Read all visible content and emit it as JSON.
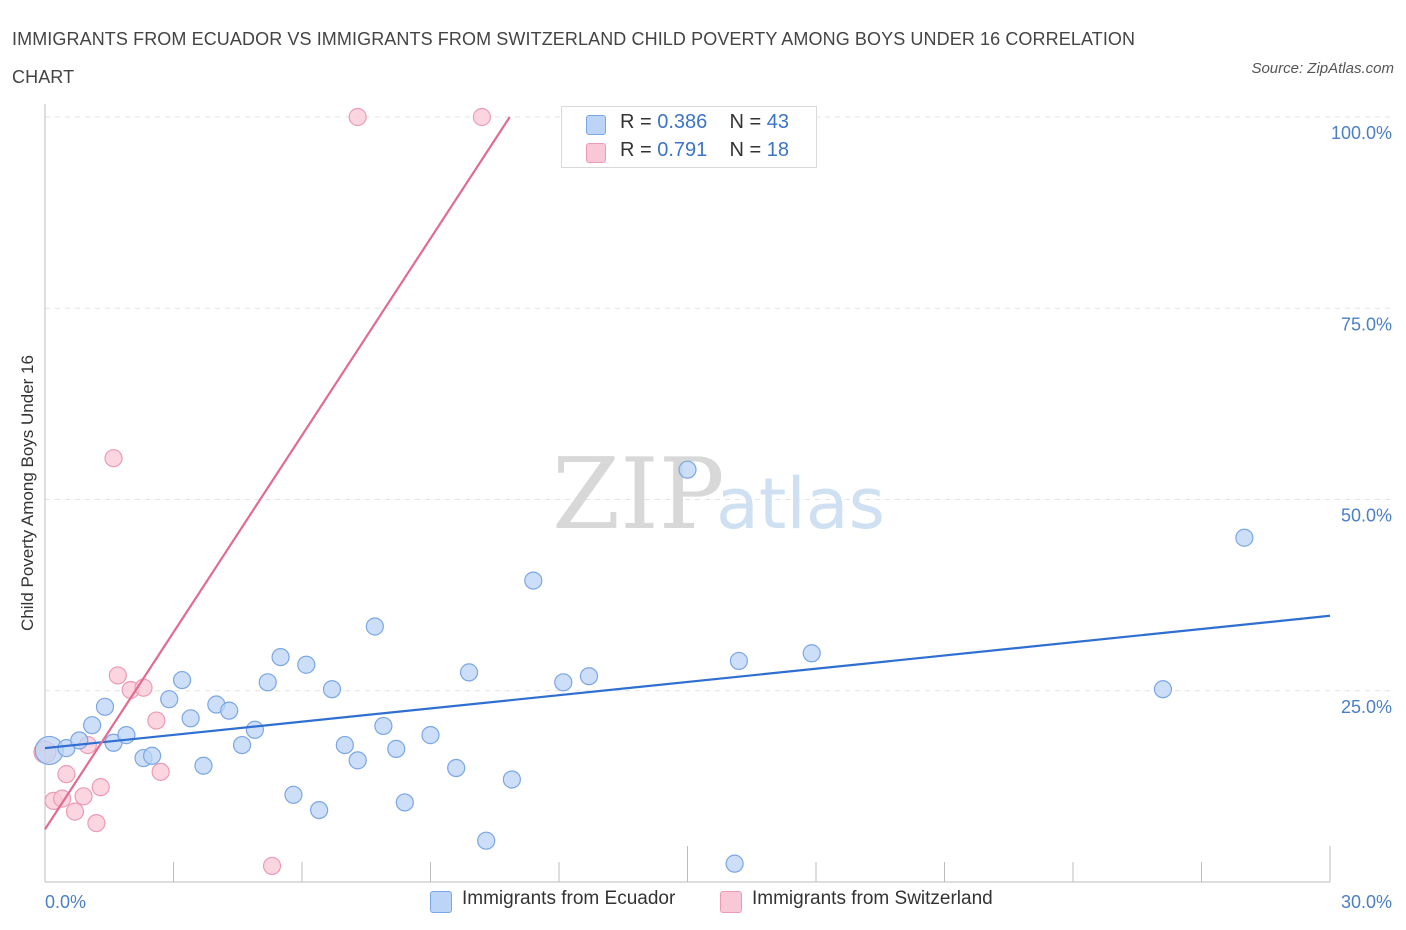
{
  "header": {
    "title": "IMMIGRANTS FROM ECUADOR VS IMMIGRANTS FROM SWITZERLAND CHILD POVERTY AMONG BOYS UNDER 16 CORRELATION CHART",
    "source": "Source: ZipAtlas.com"
  },
  "watermark": {
    "zip": "ZIP",
    "atlas": "atlas"
  },
  "legend": {
    "ecuador": {
      "r_label": "R =",
      "r_value": "0.386",
      "n_label": "N =",
      "n_value": "43"
    },
    "switzerland": {
      "r_label": "R =",
      "r_value": "0.791",
      "n_label": "N =",
      "n_value": "18"
    }
  },
  "colors": {
    "ecuador_fill": "#bcd4f5",
    "ecuador_stroke": "#7aa6e6",
    "ecuador_line": "#2f6fd1",
    "switzerland_fill": "#f9c8d6",
    "switzerland_stroke": "#ee9ab4",
    "switzerland_line": "#e06b93",
    "grid": "#e3e3e3",
    "tick_label": "#4a7fc8"
  },
  "chart_data": {
    "type": "scatter",
    "title": "IMMIGRANTS FROM ECUADOR VS IMMIGRANTS FROM SWITZERLAND CHILD POVERTY AMONG BOYS UNDER 16 CORRELATION CHART",
    "xlabel": "",
    "ylabel": "Child Poverty Among Boys Under 16",
    "xlim": [
      0,
      30
    ],
    "ylim": [
      0,
      100
    ],
    "x_tick_labels": [
      "0.0%",
      "30.0%"
    ],
    "y_ticks": [
      25,
      50,
      75,
      100
    ],
    "y_tick_labels": [
      "25.0%",
      "50.0%",
      "75.0%",
      "100.0%"
    ],
    "grid": true,
    "legend_position": "top-center",
    "series": [
      {
        "name": "Immigrants from Ecuador",
        "points": [
          [
            0.1,
            17.2
          ],
          [
            0.5,
            17.5
          ],
          [
            0.8,
            18.5
          ],
          [
            1.1,
            20.5
          ],
          [
            1.4,
            22.9
          ],
          [
            1.6,
            18.2
          ],
          [
            1.9,
            19.2
          ],
          [
            2.3,
            16.2
          ],
          [
            2.5,
            16.5
          ],
          [
            2.9,
            23.9
          ],
          [
            3.2,
            26.4
          ],
          [
            3.4,
            21.4
          ],
          [
            3.7,
            15.2
          ],
          [
            4.0,
            23.2
          ],
          [
            4.3,
            22.4
          ],
          [
            4.6,
            17.9
          ],
          [
            4.9,
            19.9
          ],
          [
            5.2,
            26.1
          ],
          [
            5.5,
            29.4
          ],
          [
            5.8,
            11.4
          ],
          [
            6.1,
            28.4
          ],
          [
            6.4,
            9.4
          ],
          [
            6.7,
            25.2
          ],
          [
            7.0,
            17.9
          ],
          [
            7.3,
            15.9
          ],
          [
            7.7,
            33.4
          ],
          [
            7.9,
            20.4
          ],
          [
            8.2,
            17.4
          ],
          [
            8.4,
            10.4
          ],
          [
            9.0,
            19.2
          ],
          [
            9.6,
            14.9
          ],
          [
            9.9,
            27.4
          ],
          [
            10.3,
            5.4
          ],
          [
            10.9,
            13.4
          ],
          [
            11.4,
            39.4
          ],
          [
            12.1,
            26.1
          ],
          [
            12.7,
            26.9
          ],
          [
            15.0,
            53.9
          ],
          [
            16.1,
            2.4
          ],
          [
            16.2,
            28.9
          ],
          [
            17.9,
            29.9
          ],
          [
            26.1,
            25.2
          ],
          [
            28.0,
            45.0
          ]
        ],
        "trend": {
          "x": [
            0,
            30
          ],
          "y": [
            17.5,
            34.8
          ]
        }
      },
      {
        "name": "Immigrants from Switzerland",
        "points": [
          [
            0.0,
            17.0
          ],
          [
            0.2,
            10.6
          ],
          [
            0.4,
            10.9
          ],
          [
            0.5,
            14.1
          ],
          [
            0.7,
            9.2
          ],
          [
            0.9,
            11.2
          ],
          [
            1.0,
            17.9
          ],
          [
            1.2,
            7.7
          ],
          [
            1.3,
            12.4
          ],
          [
            1.6,
            55.4
          ],
          [
            1.7,
            27.0
          ],
          [
            2.0,
            25.1
          ],
          [
            2.3,
            25.4
          ],
          [
            2.6,
            21.1
          ],
          [
            2.7,
            14.4
          ],
          [
            5.3,
            2.1
          ],
          [
            7.3,
            100.0
          ],
          [
            10.2,
            100.0
          ]
        ],
        "trend": {
          "x": [
            0,
            10.85
          ],
          "y": [
            6.9,
            100
          ]
        }
      }
    ]
  }
}
